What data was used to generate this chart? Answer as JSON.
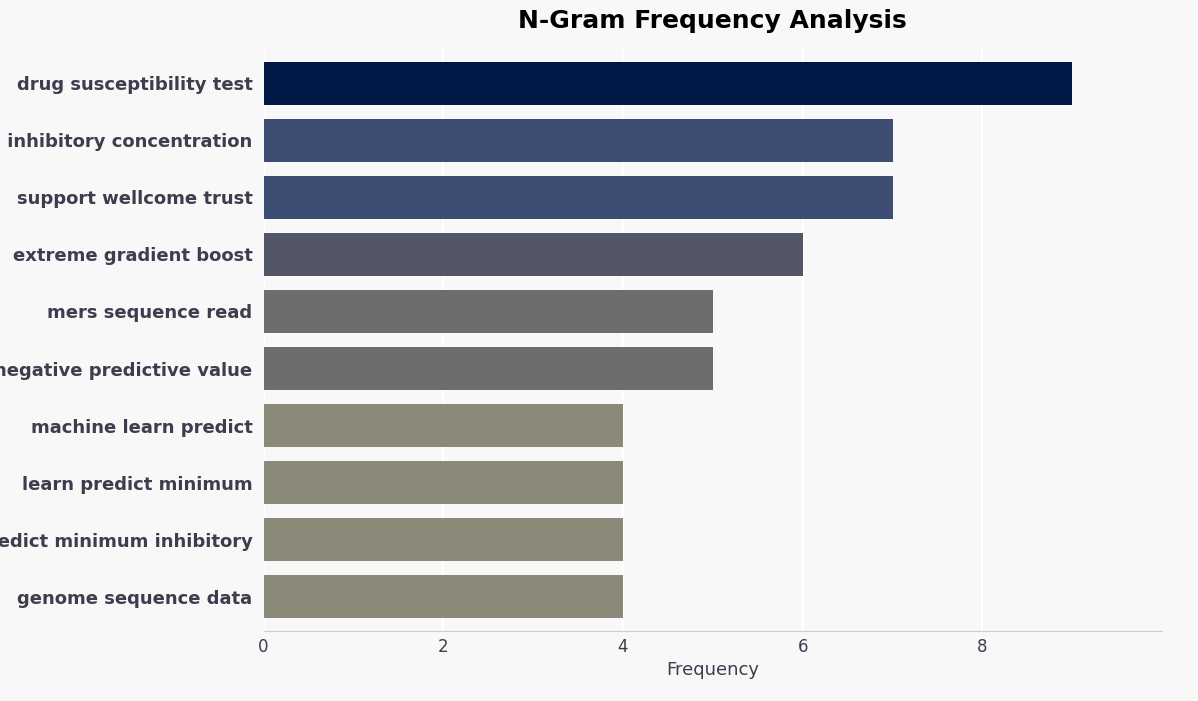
{
  "title": "N-Gram Frequency Analysis",
  "categories": [
    "genome sequence data",
    "predict minimum inhibitory",
    "learn predict minimum",
    "machine learn predict",
    "negative predictive value",
    "mers sequence read",
    "extreme gradient boost",
    "support wellcome trust",
    "minimum inhibitory concentration",
    "drug susceptibility test"
  ],
  "values": [
    4,
    4,
    4,
    4,
    5,
    5,
    6,
    7,
    7,
    9
  ],
  "bar_colors": [
    "#8b8a78",
    "#8b8a78",
    "#8b8a78",
    "#8b8a78",
    "#6b6d6e",
    "#6b6d6e",
    "#525667",
    "#3d4d73",
    "#3d4d73",
    "#001845"
  ],
  "xlabel": "Frequency",
  "ylabel": "",
  "xlim": [
    0,
    10
  ],
  "xticks": [
    0,
    2,
    4,
    6,
    8
  ],
  "background_color": "#f8f8f8",
  "plot_bg_color": "#f8f8f8",
  "title_fontsize": 18,
  "label_fontsize": 13,
  "tick_fontsize": 12,
  "bar_height": 0.75,
  "label_color": "#3d3d4d",
  "grid_color": "#ffffff"
}
